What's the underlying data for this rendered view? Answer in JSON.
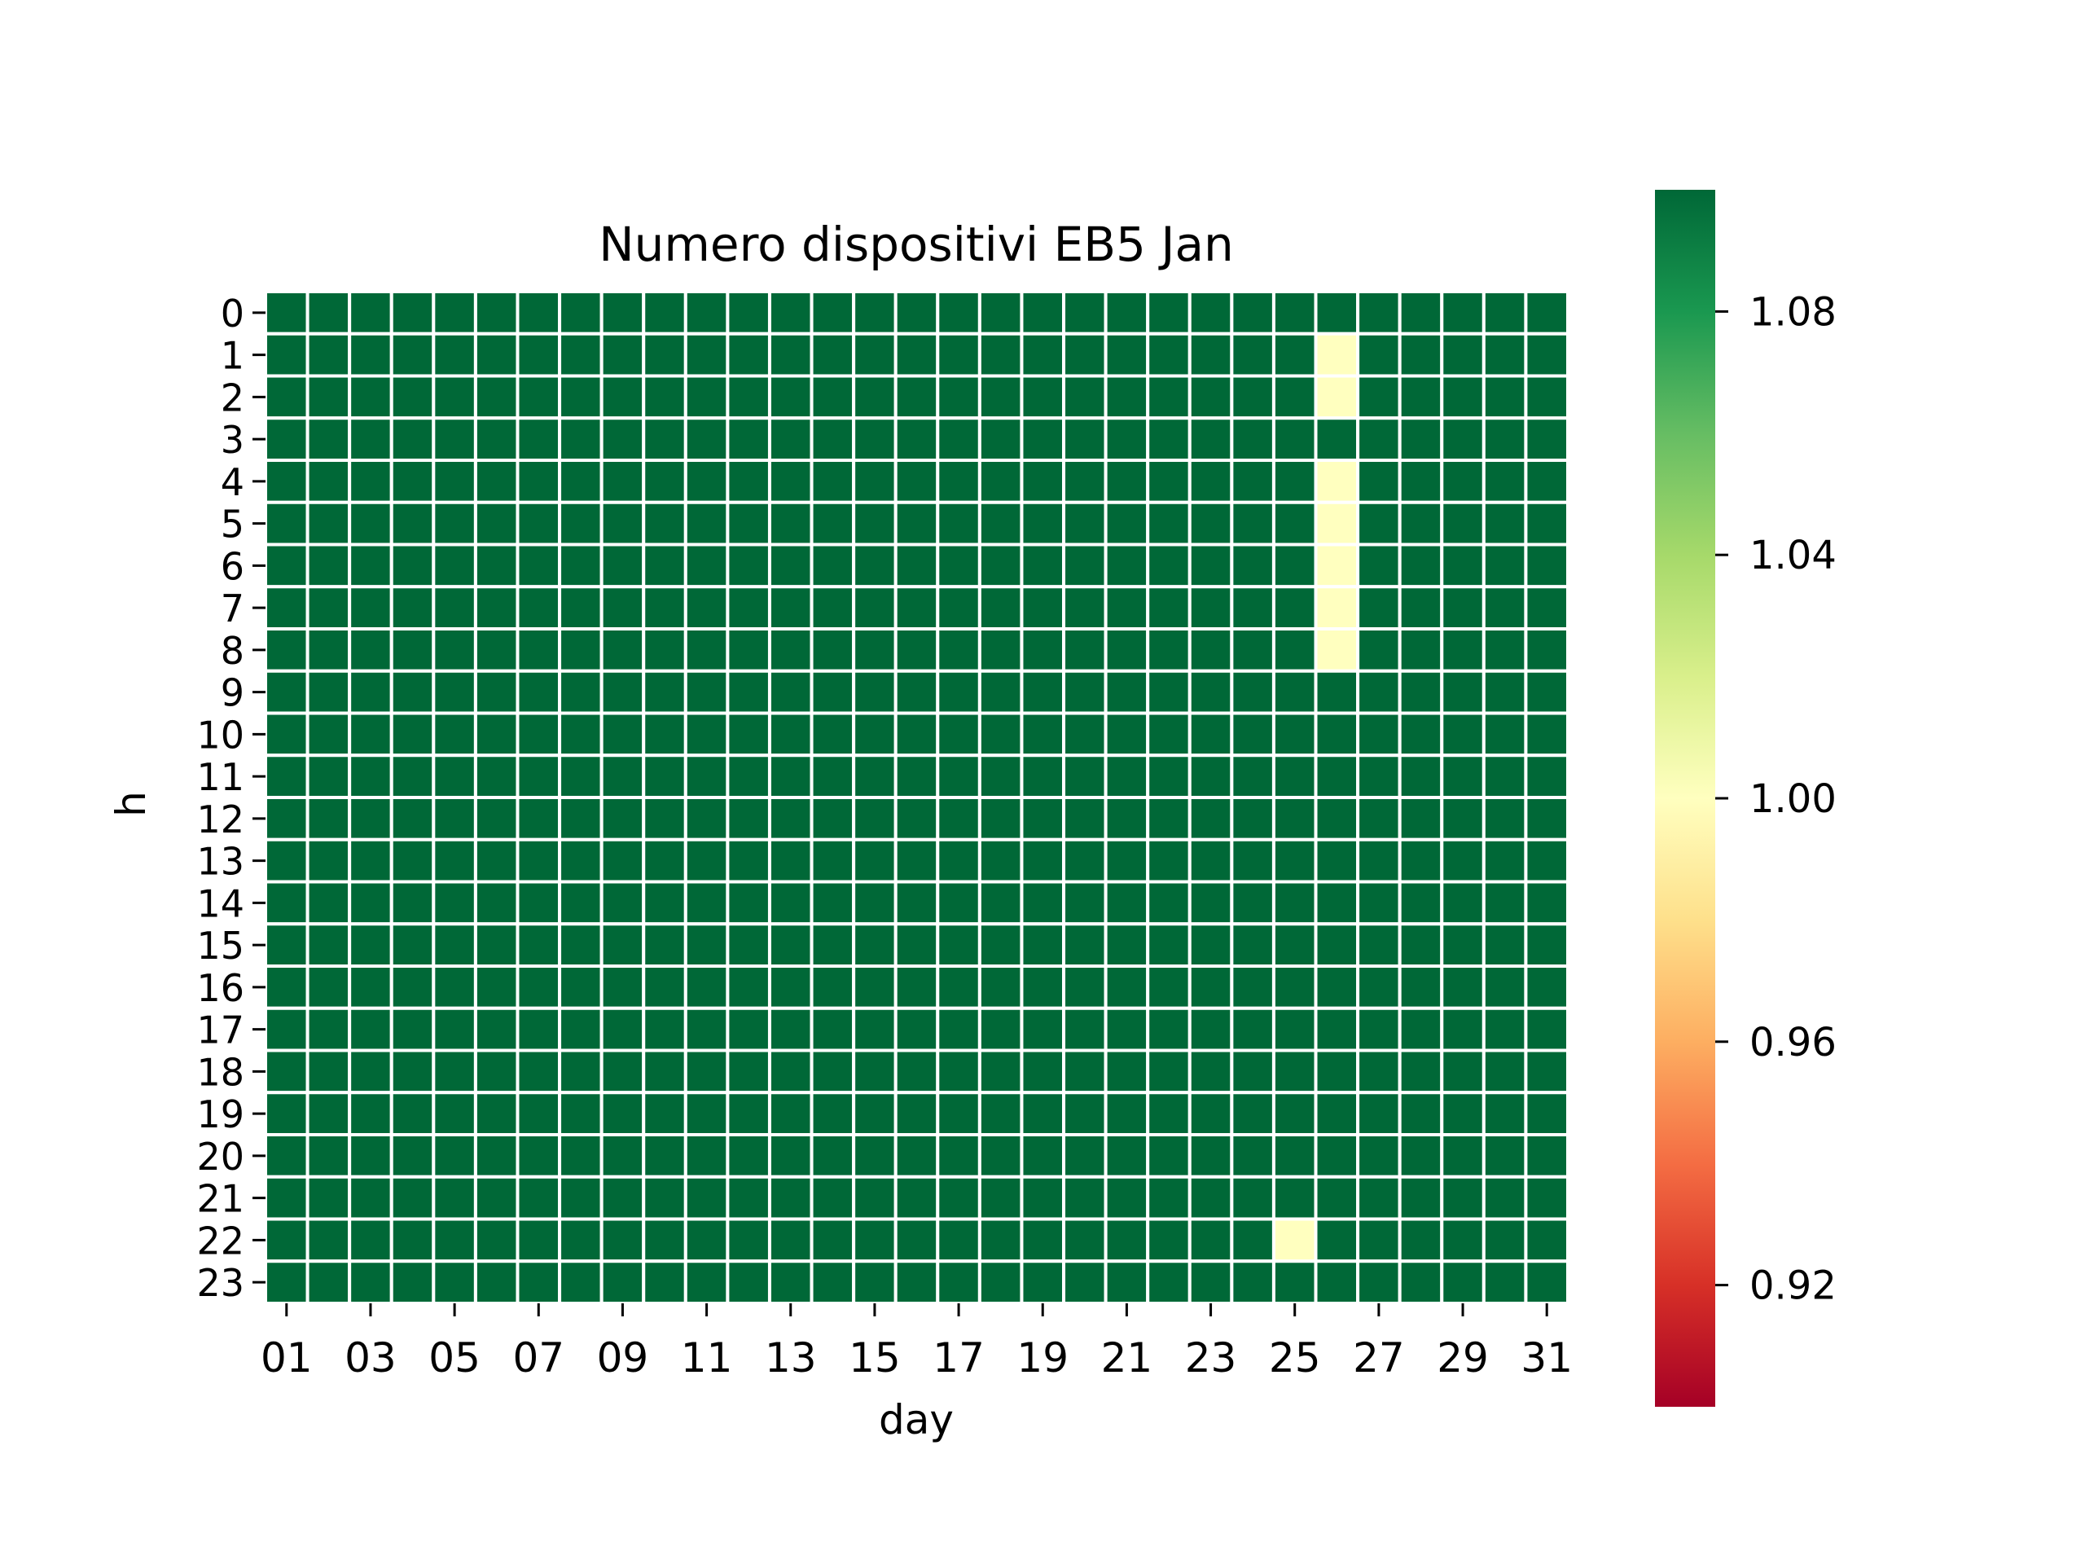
{
  "chart_data": {
    "type": "heatmap",
    "title": "Numero dispositivi EB5 Jan",
    "xlabel": "day",
    "ylabel": "h",
    "columns": [
      "01",
      "02",
      "03",
      "04",
      "05",
      "06",
      "07",
      "08",
      "09",
      "10",
      "11",
      "12",
      "13",
      "14",
      "15",
      "16",
      "17",
      "18",
      "19",
      "20",
      "21",
      "22",
      "23",
      "24",
      "25",
      "26",
      "27",
      "28",
      "29",
      "30",
      "31"
    ],
    "x_tick_labels": [
      "01",
      "03",
      "05",
      "07",
      "09",
      "11",
      "13",
      "15",
      "17",
      "19",
      "21",
      "23",
      "25",
      "27",
      "29",
      "31"
    ],
    "rows": [
      "0",
      "1",
      "2",
      "3",
      "4",
      "5",
      "6",
      "7",
      "8",
      "9",
      "10",
      "11",
      "12",
      "13",
      "14",
      "15",
      "16",
      "17",
      "18",
      "19",
      "20",
      "21",
      "22",
      "23"
    ],
    "default_value": 1.1,
    "cells": [
      {
        "h": "1",
        "day": "26",
        "value": 1.0
      },
      {
        "h": "2",
        "day": "26",
        "value": 1.0
      },
      {
        "h": "4",
        "day": "26",
        "value": 1.0
      },
      {
        "h": "5",
        "day": "26",
        "value": 1.0
      },
      {
        "h": "6",
        "day": "26",
        "value": 1.0
      },
      {
        "h": "7",
        "day": "26",
        "value": 1.0
      },
      {
        "h": "8",
        "day": "26",
        "value": 1.0
      },
      {
        "h": "22",
        "day": "25",
        "value": 1.0
      }
    ],
    "colormap": "RdYlGn",
    "vmin": 0.9,
    "vmax": 1.1,
    "colorbar_ticks": [
      "0.92",
      "0.96",
      "1.00",
      "1.04",
      "1.08"
    ],
    "colorbar_tick_values": [
      0.92,
      0.96,
      1.0,
      1.04,
      1.08
    ],
    "colorbar_position": "right",
    "grid": "white cell borders"
  }
}
